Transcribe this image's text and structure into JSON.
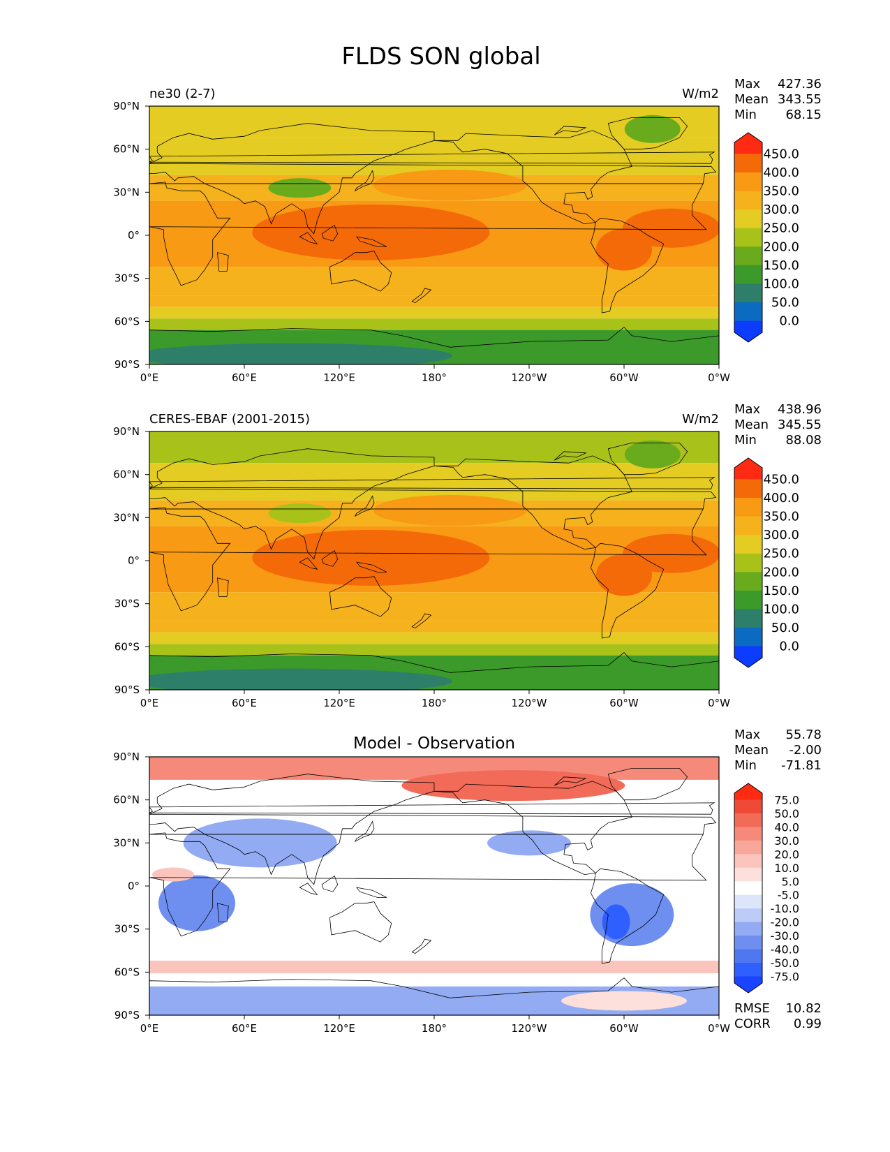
{
  "figure": {
    "title": "FLDS SON global"
  },
  "axes": {
    "x_ticks": [
      "0°E",
      "60°E",
      "120°E",
      "180°",
      "120°W",
      "60°W",
      "0°W"
    ],
    "y_ticks": [
      "90°N",
      "60°N",
      "30°N",
      "0°",
      "30°S",
      "60°S",
      "90°S"
    ]
  },
  "colors": {
    "field": [
      "#0b3cff",
      "#0a6bc0",
      "#2e7f6a",
      "#3b9a2a",
      "#6aab1e",
      "#a9c21a",
      "#e4cc22",
      "#f6b21c",
      "#f89a14",
      "#f56a08",
      "#ff2a12"
    ],
    "diff": [
      "#1a44ff",
      "#2f5fff",
      "#4f78f0",
      "#6f8ff0",
      "#93abf3",
      "#bcccf7",
      "#dde5fb",
      "#ffffff",
      "#fde0dc",
      "#fbc4bc",
      "#f8a79a",
      "#f58a7a",
      "#f26a58",
      "#ef4a37",
      "#ff2a12"
    ]
  },
  "chart_data": [
    {
      "type": "heatmap",
      "name": "ne30 (2-7)",
      "units": "W/m2",
      "stats": [
        {
          "label": "Max",
          "value": "427.36"
        },
        {
          "label": "Mean",
          "value": "343.55"
        },
        {
          "label": "Min",
          "value": "68.15"
        }
      ],
      "colorbar_levels": [
        "450.0",
        "400.0",
        "350.0",
        "300.0",
        "250.0",
        "200.0",
        "150.0",
        "100.0",
        "50.0",
        "0.0"
      ],
      "xlim": [
        0,
        360
      ],
      "ylim": [
        -90,
        90
      ]
    },
    {
      "type": "heatmap",
      "name": "CERES-EBAF (2001-2015)",
      "units": "W/m2",
      "stats": [
        {
          "label": "Max",
          "value": "438.96"
        },
        {
          "label": "Mean",
          "value": "345.55"
        },
        {
          "label": "Min",
          "value": "88.08"
        }
      ],
      "colorbar_levels": [
        "450.0",
        "400.0",
        "350.0",
        "300.0",
        "250.0",
        "200.0",
        "150.0",
        "100.0",
        "50.0",
        "0.0"
      ],
      "xlim": [
        0,
        360
      ],
      "ylim": [
        -90,
        90
      ]
    },
    {
      "type": "heatmap",
      "title": "Model - Observation",
      "stats": [
        {
          "label": "Max",
          "value": "55.78"
        },
        {
          "label": "Mean",
          "value": "-2.00"
        },
        {
          "label": "Min",
          "value": "-71.81"
        }
      ],
      "colorbar_levels": [
        "75.0",
        "50.0",
        "40.0",
        "30.0",
        "20.0",
        "10.0",
        "5.0",
        "-5.0",
        "-10.0",
        "-20.0",
        "-30.0",
        "-40.0",
        "-50.0",
        "-75.0"
      ],
      "extra_stats": [
        {
          "label": "RMSE",
          "value": "10.82"
        },
        {
          "label": "CORR",
          "value": "0.99"
        }
      ],
      "xlim": [
        0,
        360
      ],
      "ylim": [
        -90,
        90
      ]
    }
  ]
}
